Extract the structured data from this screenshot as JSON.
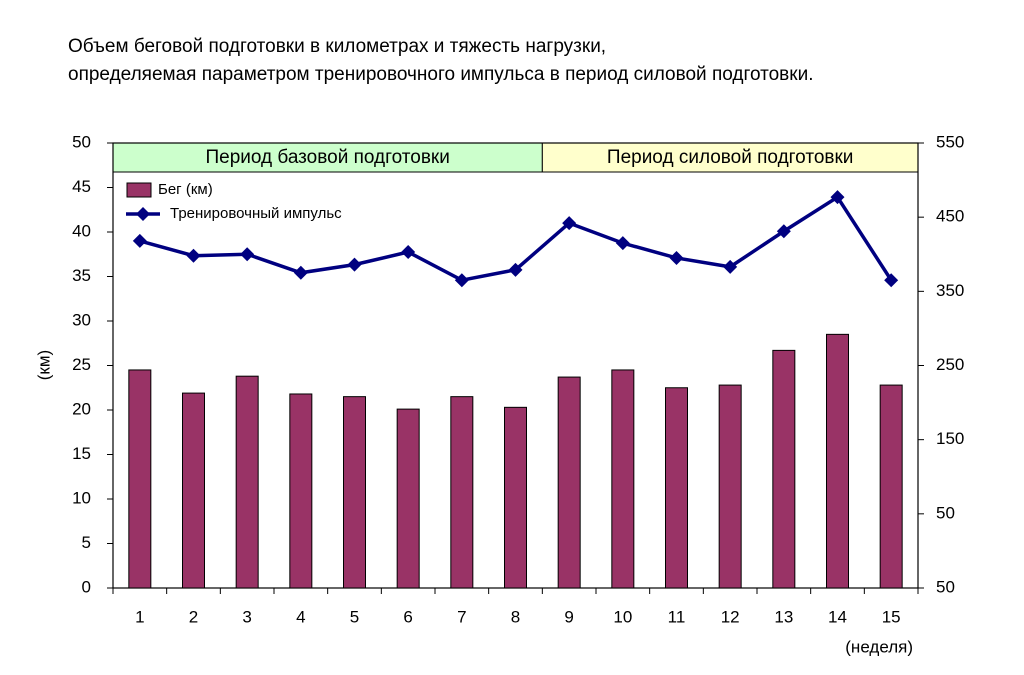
{
  "chart_data": {
    "type": "bar_line",
    "title": [
      "Объем беговой подготовки в километрах и тяжесть нагрузки,",
      "определяемая параметром тренировочного импульса в период силовой подготовки."
    ],
    "y_label": "(км)",
    "x_label": "(неделя)",
    "categories": [
      "1",
      "2",
      "3",
      "4",
      "5",
      "6",
      "7",
      "8",
      "9",
      "10",
      "11",
      "12",
      "13",
      "14",
      "15"
    ],
    "series": [
      {
        "name": "Бег (км)",
        "type": "bar",
        "color": "#993366",
        "values": [
          24.5,
          21.9,
          23.8,
          21.8,
          21.5,
          20.1,
          21.5,
          20.3,
          23.7,
          24.5,
          22.5,
          22.8,
          26.7,
          28.5,
          22.8
        ]
      },
      {
        "name": "Тренировочный импульс",
        "type": "line",
        "axis": "y2",
        "color": "#000080",
        "values": [
          418,
          398,
          400,
          375,
          386,
          403,
          365,
          379,
          442,
          415,
          395,
          383,
          431,
          477,
          365
        ]
      }
    ],
    "periods": [
      {
        "label": "Период базовой подготовки",
        "color": "#ccffcc"
      },
      {
        "label": "Период силовой подготовки",
        "color": "#ffffcc"
      }
    ],
    "ylim": [
      0,
      50
    ],
    "yticks": [
      0,
      5,
      10,
      15,
      20,
      25,
      30,
      35,
      40,
      45,
      50
    ],
    "y2lim": [
      -50,
      550
    ],
    "y2ticks": [
      {
        "value": -50,
        "label": "50"
      },
      50,
      150,
      250,
      350,
      450,
      550
    ],
    "grid": false,
    "legend": "top-left"
  }
}
